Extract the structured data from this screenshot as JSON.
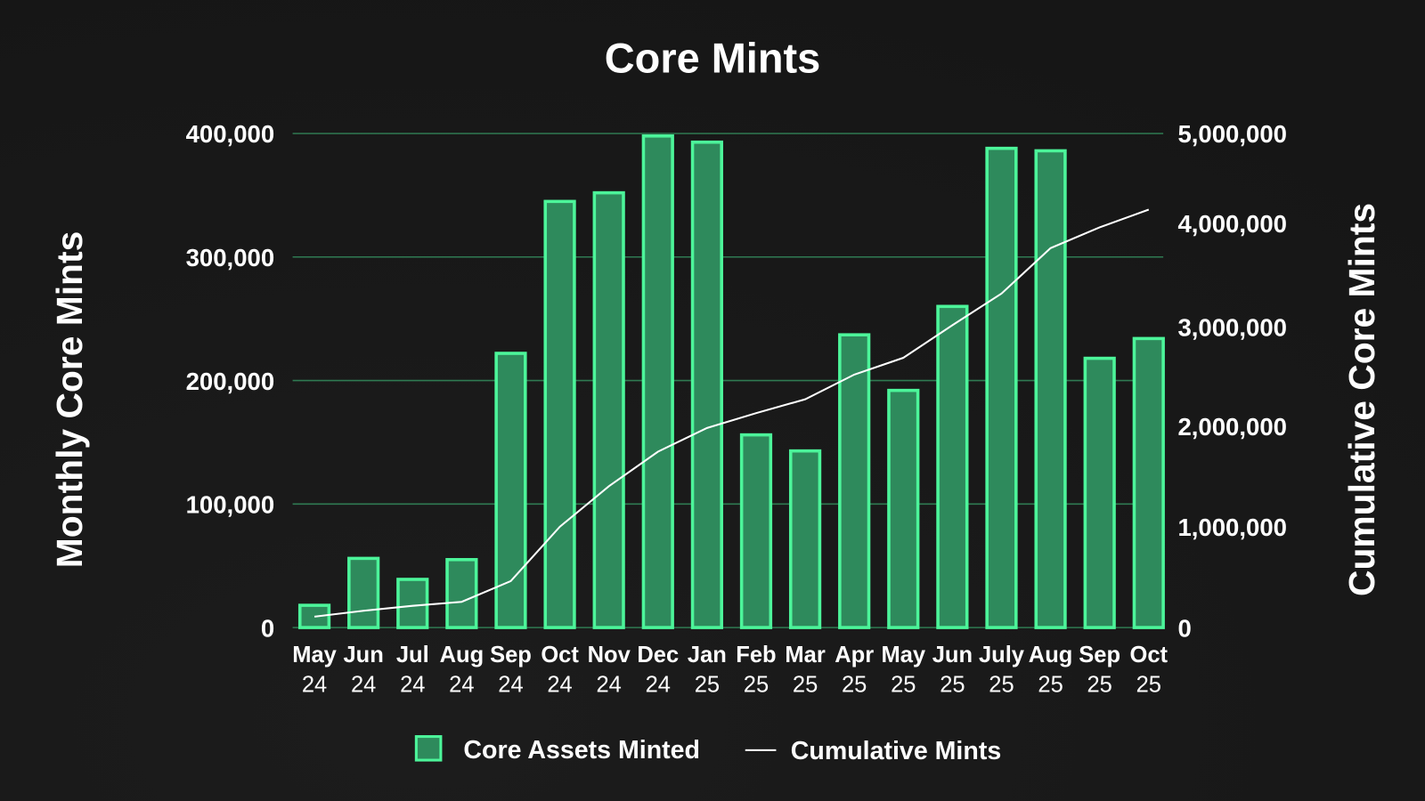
{
  "chart_data": {
    "type": "bar",
    "title": "Core Mints",
    "ylabel": "Monthly Core Mints",
    "y2label": "Cumulative Core Mints",
    "ylim": [
      0,
      400000
    ],
    "y2lim": [
      0,
      5000000
    ],
    "yticks": [
      "0",
      "100,000",
      "200,000",
      "300,000",
      "400,000"
    ],
    "y2ticks": [
      "0",
      "1,000,000",
      "2,000,000",
      "3,000,000",
      "4,000,000",
      "5,000,000"
    ],
    "grid": true,
    "legend_placement": "bottom-center",
    "categories": [
      {
        "month": "May",
        "year": "24"
      },
      {
        "month": "Jun",
        "year": "24"
      },
      {
        "month": "Jul",
        "year": "24"
      },
      {
        "month": "Aug",
        "year": "24"
      },
      {
        "month": "Sep",
        "year": "24"
      },
      {
        "month": "Oct",
        "year": "24"
      },
      {
        "month": "Nov",
        "year": "24"
      },
      {
        "month": "Dec",
        "year": "24"
      },
      {
        "month": "Jan",
        "year": "25"
      },
      {
        "month": "Feb",
        "year": "25"
      },
      {
        "month": "Mar",
        "year": "25"
      },
      {
        "month": "Apr",
        "year": "25"
      },
      {
        "month": "May",
        "year": "25"
      },
      {
        "month": "Jun",
        "year": "25"
      },
      {
        "month": "July",
        "year": "25"
      },
      {
        "month": "Aug",
        "year": "25"
      },
      {
        "month": "Sep",
        "year": "25"
      },
      {
        "month": "Oct",
        "year": "25"
      }
    ],
    "series": [
      {
        "name": "Core Assets Minted",
        "type": "bar",
        "axis": "left",
        "color": "#2e8a5c",
        "edge": "#4cf59a",
        "values": [
          18000,
          56000,
          39000,
          55000,
          222000,
          345000,
          352000,
          398000,
          393000,
          156000,
          143000,
          237000,
          192000,
          260000,
          388000,
          386000,
          218000,
          234000
        ]
      },
      {
        "name": "Cumulative Mints",
        "type": "line",
        "axis": "right",
        "color": "#ffffff",
        "values": [
          110000,
          170000,
          220000,
          260000,
          470000,
          1020000,
          1430000,
          1780000,
          2020000,
          2170000,
          2310000,
          2560000,
          2730000,
          3060000,
          3380000,
          3840000,
          4050000,
          4230000
        ]
      }
    ]
  }
}
